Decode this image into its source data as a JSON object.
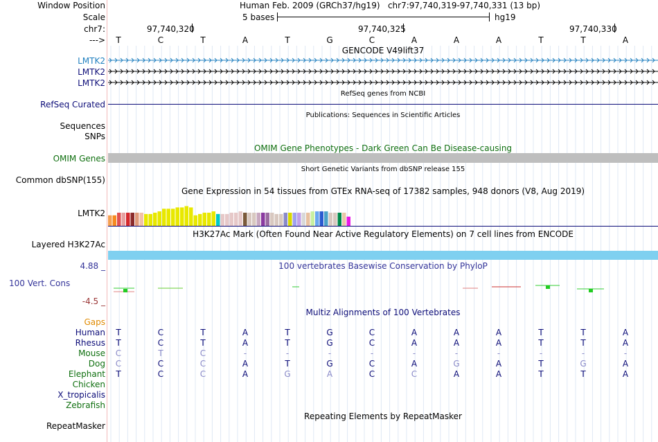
{
  "header": {
    "window_position_label": "Window Position",
    "window_position_text": "Human Feb. 2009 (GRCh37/hg19)   chr7:97,740,319-97,740,331 (13 bp)",
    "scale_label": "Scale",
    "scale_text": "5 bases",
    "scale_assembly": "hg19",
    "chrom_label": "chr7:",
    "ticks": [
      "97,740,320",
      "97,740,325",
      "97,740,330"
    ],
    "strand_label": "--->",
    "sequence": [
      "T",
      "C",
      "T",
      "A",
      "T",
      "G",
      "C",
      "A",
      "A",
      "A",
      "T",
      "T",
      "A"
    ]
  },
  "tracks": {
    "gencode": {
      "title": "GENCODE V49lift37",
      "rows": [
        "LMTK2",
        "LMTK2",
        "LMTK2"
      ]
    },
    "refseq": {
      "title": "RefSeq genes from NCBI",
      "label": "RefSeq Curated"
    },
    "publications": {
      "title": "Publications: Sequences in Scientific Articles",
      "labels": [
        "Sequences",
        "SNPs"
      ]
    },
    "omim": {
      "title": "OMIM Gene Phenotypes - Dark Green Can Be Disease-causing",
      "label": "OMIM Genes"
    },
    "dbsnp": {
      "title": "Short Genetic Variants from dbSNP release 155",
      "label": "Common dbSNP(155)"
    },
    "gtex": {
      "title": "Gene Expression in 54 tissues from GTEx RNA-seq of 17382 samples, 948 donors (V8, Aug 2019)",
      "label": "LMTK2"
    },
    "h3k27ac": {
      "title": "H3K27Ac Mark (Often Found Near Active Regulatory Elements) on 7 cell lines from ENCODE",
      "label": "Layered H3K27Ac"
    },
    "phylop": {
      "title": "100 vertebrates Basewise Conservation by PhyloP",
      "label": "100 Vert. Cons",
      "max_label": "4.88 _",
      "min_label": "-4.5 _"
    },
    "multiz": {
      "title": "Multiz Alignments of 100 Vertebrates",
      "gaps_label": "Gaps",
      "species": [
        {
          "name": "Human",
          "bases": [
            "T",
            "C",
            "T",
            "A",
            "T",
            "G",
            "C",
            "A",
            "A",
            "A",
            "T",
            "T",
            "A"
          ]
        },
        {
          "name": "Rhesus",
          "bases": [
            "T",
            "C",
            "T",
            "A",
            "T",
            "G",
            "C",
            "A",
            "A",
            "A",
            "T",
            "T",
            "A"
          ]
        },
        {
          "name": "Mouse",
          "bases": [
            "C",
            "T",
            "C",
            "-",
            "-",
            "-",
            "-",
            "-",
            "-",
            "-",
            "-",
            "-",
            "-"
          ]
        },
        {
          "name": "Dog",
          "bases": [
            "C",
            "C",
            "C",
            "A",
            "T",
            "G",
            "C",
            "A",
            "G",
            "A",
            "T",
            "G",
            "A"
          ]
        },
        {
          "name": "Elephant",
          "bases": [
            "T",
            "C",
            "C",
            "A",
            "G",
            "A",
            "C",
            "C",
            "A",
            "A",
            "T",
            "T",
            "A"
          ]
        },
        {
          "name": "Chicken",
          "bases": []
        },
        {
          "name": "X_tropicalis",
          "bases": []
        },
        {
          "name": "Zebrafish",
          "bases": []
        }
      ]
    },
    "repeatmasker": {
      "title": "Repeating Elements by RepeatMasker",
      "label": "RepeatMasker"
    }
  },
  "colors": {
    "gtex_bars": [
      "#f5a050",
      "#f58a20",
      "#e05050",
      "#e6a0a0",
      "#d4282c",
      "#8a2a2a",
      "#e09a7a",
      "#f2c0a8",
      "#e8e800",
      "#e8e800",
      "#e8e800",
      "#e8e800",
      "#e8e800",
      "#e8e800",
      "#e8e800",
      "#e8e800",
      "#e8e800",
      "#e8e800",
      "#e8e800",
      "#e8e800",
      "#e8e800",
      "#e8e800",
      "#e8e800",
      "#e8e800",
      "#00c8c8",
      "#e6c8c8",
      "#e6c8c8",
      "#e6c8c8",
      "#e6c8c8",
      "#e6c8c8",
      "#7a5a3a",
      "#d8c8c0",
      "#d8c8c0",
      "#c8a8c0",
      "#8a3aa0",
      "#9a6aa0",
      "#d8c8c0",
      "#d8c8c0",
      "#d8c8c0",
      "#8a8ac8",
      "#d8d800",
      "#a0a0f0",
      "#c0a0e8",
      "#d8d8d8",
      "#e8c0a0",
      "#c8f0a0",
      "#6aa8f0",
      "#2a5ad0",
      "#4aa0c8",
      "#d8c8c0",
      "#d8c8c0",
      "#008a4a",
      "#e8c8a8",
      "#e818e8"
    ],
    "gtex_values": [
      0.4,
      0.4,
      0.5,
      0.5,
      0.5,
      0.5,
      0.5,
      0.5,
      0.45,
      0.45,
      0.5,
      0.55,
      0.65,
      0.65,
      0.65,
      0.7,
      0.7,
      0.75,
      0.7,
      0.4,
      0.45,
      0.5,
      0.5,
      0.55,
      0.45,
      0.45,
      0.45,
      0.5,
      0.5,
      0.55,
      0.5,
      0.5,
      0.5,
      0.5,
      0.5,
      0.5,
      0.5,
      0.45,
      0.45,
      0.5,
      0.5,
      0.5,
      0.5,
      0.5,
      0.5,
      0.55,
      0.55,
      0.55,
      0.55,
      0.5,
      0.5,
      0.5,
      0.5,
      0.35
    ]
  }
}
